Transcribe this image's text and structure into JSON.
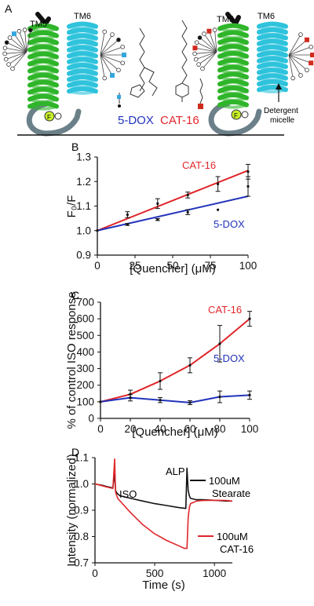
{
  "panel_a": {
    "panel_label": "A",
    "tm5": "TM5",
    "tm6": "TM6",
    "fluor": "F",
    "dox_label": "5-DOX",
    "cat_label": "CAT-16",
    "micelle_line1": "Detergent",
    "micelle_line2": "micelle",
    "colors": {
      "tm5": "#2fb52a",
      "tm6": "#2fc3dc",
      "dox": "#2233bb",
      "cat": "#e0262a",
      "micelle_dox_head": "#35a6df",
      "micelle_cat_head": "#cf2a1e",
      "fluor": "#c8f02a"
    }
  },
  "chart_data": [
    {
      "panel_label": "B",
      "type": "scatter",
      "xlabel": "[Quencher] (μM)",
      "ylabel": "F₀/F",
      "xlim": [
        0,
        100
      ],
      "ylim": [
        0.9,
        1.3
      ],
      "xticks": [
        "0",
        "25",
        "50",
        "75",
        "100"
      ],
      "yticks": [
        "0.9",
        "1.0",
        "1.1",
        "1.2",
        "1.3"
      ],
      "series": [
        {
          "name": "CAT-16",
          "color": "#e0262a",
          "x": [
            0,
            20,
            40,
            60,
            80,
            100
          ],
          "y": [
            1.0,
            1.065,
            1.11,
            1.145,
            1.19,
            1.24
          ],
          "err": [
            0,
            0.012,
            0.02,
            0.012,
            0.03,
            0.03
          ],
          "fit": [
            [
              0,
              1.0
            ],
            [
              100,
              1.245
            ]
          ]
        },
        {
          "name": "5-DOX",
          "color": "#2233bb",
          "x": [
            0,
            20,
            40,
            60,
            80,
            100
          ],
          "y": [
            1.0,
            1.025,
            1.045,
            1.075,
            1.085,
            1.18
          ],
          "err": [
            0,
            0.004,
            0.004,
            0.01,
            0,
            0.04
          ],
          "fit": [
            [
              0,
              1.0
            ],
            [
              100,
              1.14
            ]
          ]
        }
      ]
    },
    {
      "panel_label": "C",
      "type": "line",
      "xlabel": "[Quencher] (μM)",
      "ylabel": "% of control ISO response",
      "xlim": [
        0,
        100
      ],
      "ylim": [
        0,
        700
      ],
      "xticks": [
        "0",
        "20",
        "40",
        "60",
        "80",
        "100"
      ],
      "yticks": [
        "0",
        "100",
        "200",
        "300",
        "400",
        "500",
        "600",
        "700"
      ],
      "series": [
        {
          "name": "CAT-16",
          "color": "#e0262a",
          "x": [
            0,
            20,
            40,
            60,
            80,
            100
          ],
          "y": [
            100,
            145,
            225,
            320,
            450,
            600
          ],
          "err": [
            0,
            25,
            50,
            45,
            110,
            45
          ]
        },
        {
          "name": "5-DOX",
          "color": "#2233bb",
          "x": [
            0,
            20,
            40,
            60,
            80,
            100
          ],
          "y": [
            100,
            125,
            110,
            95,
            130,
            140
          ],
          "err": [
            0,
            20,
            15,
            12,
            35,
            25
          ]
        }
      ]
    },
    {
      "panel_label": "D",
      "type": "line",
      "xlabel": "Time (s)",
      "ylabel": "Intensity (normalized)",
      "xlim": [
        0,
        1150
      ],
      "ylim": [
        0.7,
        1.1
      ],
      "xticks": [
        "0",
        "500",
        "1000"
      ],
      "yticks": [
        "0.7",
        "0.8",
        "0.9",
        "1.0",
        "1.1"
      ],
      "annotations": [
        "ISO",
        "ALP"
      ],
      "series": [
        {
          "name": "100uM Stearate",
          "color": "#111111",
          "x": [
            0,
            20,
            60,
            100,
            150,
            165,
            172,
            180,
            190,
            210,
            300,
            400,
            500,
            600,
            700,
            760,
            770,
            780,
            790,
            800,
            850,
            900,
            1000,
            1100,
            1150
          ],
          "y": [
            1.0,
            0.998,
            0.995,
            0.99,
            0.985,
            1.04,
            0.975,
            0.968,
            0.962,
            0.955,
            0.945,
            0.935,
            0.925,
            0.918,
            0.91,
            0.907,
            1.06,
            0.975,
            0.955,
            0.945,
            0.94,
            0.94,
            0.938,
            0.935,
            0.935
          ]
        },
        {
          "name": "100uM CAT-16",
          "color": "#e0262a",
          "x": [
            0,
            20,
            60,
            100,
            150,
            165,
            172,
            180,
            190,
            220,
            300,
            400,
            500,
            600,
            700,
            750,
            770,
            780,
            790,
            800,
            850,
            900,
            1000,
            1100,
            1150
          ],
          "y": [
            1.0,
            0.998,
            0.993,
            0.988,
            0.983,
            1.095,
            0.97,
            0.958,
            0.945,
            0.93,
            0.89,
            0.845,
            0.81,
            0.785,
            0.765,
            0.755,
            0.755,
            0.87,
            0.91,
            0.925,
            0.935,
            0.937,
            0.938,
            0.937,
            0.935
          ]
        }
      ]
    }
  ]
}
